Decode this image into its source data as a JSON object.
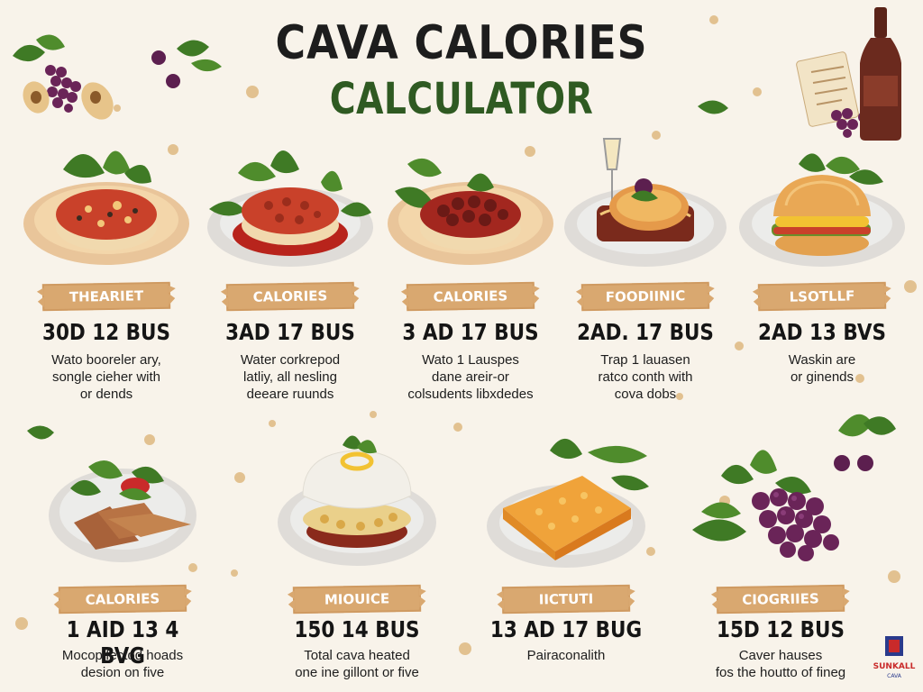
{
  "title": {
    "line1": "CAVA CALORIES",
    "line2": "CALCULATOR"
  },
  "colors": {
    "background": "#f8f3ea",
    "title_dark": "#1d1d1d",
    "title_green": "#2f5a22",
    "banner": "#d9a870",
    "plate_tan": "#e9c59a",
    "plate_white": "#e8e6e3",
    "leaf_green": "#3f7a25",
    "grape_purple": "#5c1f4f",
    "bottle": "#6b2a1e"
  },
  "cards": [
    {
      "icon": "pizza-dish-icon",
      "banner": "THEARIET",
      "value": "30D 12 BUS",
      "desc": [
        "Wato booreler ary,",
        "songle cieher with",
        "or dends"
      ]
    },
    {
      "icon": "meat-dish-icon",
      "banner": "CALORIES",
      "value": "3AD 17 BUS",
      "desc": [
        "Water corkrepod",
        "latliy, all nesling",
        "deeare ruunds"
      ]
    },
    {
      "icon": "bean-dish-icon",
      "banner": "CALORIES",
      "value": "3 AD 17 BUS",
      "desc": [
        "Wato 1 Lauspes",
        "dane areir-or",
        "colsudents libxdedes"
      ]
    },
    {
      "icon": "flatbread-dish-icon",
      "banner": "FOODIINIC",
      "value": "2AD. 17 BUS",
      "desc": [
        "Trap 1 lauasen",
        "ratco conth with",
        "cova dobs"
      ]
    },
    {
      "icon": "burger-dish-icon",
      "banner": "LSOTLLF",
      "value": "2AD 13 BVS",
      "desc": [
        "Waskin are",
        "or ginends"
      ]
    },
    {
      "icon": "chips-dish-icon",
      "banner": "CALORIES",
      "value": "1 AID 13 4 BVG",
      "desc": [
        "Mocopifectod hoads",
        "desion on five"
      ]
    },
    {
      "icon": "bowl-dish-icon",
      "banner": "MIOUICE",
      "value": "150 14 BUS",
      "desc": [
        "Total cava heated",
        "one ine gillont or five"
      ]
    },
    {
      "icon": "cornbread-dish-icon",
      "banner": "IICTUTI",
      "value": "13 AD 17 BUG",
      "desc": [
        "Pairaconalith"
      ]
    },
    {
      "icon": "grapes-icon",
      "banner": "CIOGRIIES",
      "value": "15D 12 BUS",
      "desc": [
        "Caver hauses",
        "fos the houtto of fineg"
      ]
    }
  ],
  "logo": {
    "line1": "SUNKALL",
    "line2": "CAVA"
  }
}
